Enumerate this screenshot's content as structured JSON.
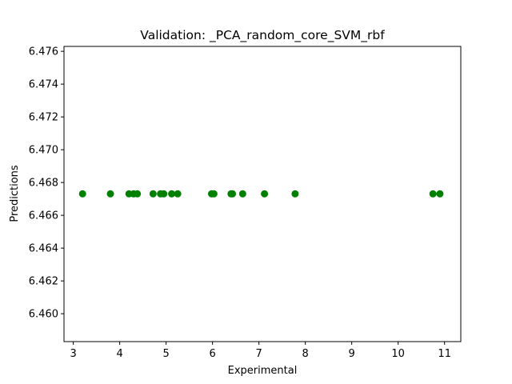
{
  "chart_data": {
    "type": "scatter",
    "title": "Validation: _PCA_random_core_SVM_rbf",
    "xlabel": "Experimental",
    "ylabel": "Predictions",
    "xlim": [
      2.8,
      11.35
    ],
    "ylim": [
      6.4583,
      6.4763
    ],
    "xticks": [
      3,
      4,
      5,
      6,
      7,
      8,
      9,
      10,
      11
    ],
    "yticks": [
      6.46,
      6.462,
      6.464,
      6.466,
      6.468,
      6.47,
      6.472,
      6.474,
      6.476
    ],
    "ytick_labels": [
      "6.460",
      "6.462",
      "6.464",
      "6.466",
      "6.468",
      "6.470",
      "6.472",
      "6.474",
      "6.476"
    ],
    "grid": false,
    "legend": false,
    "marker_color": "#008000",
    "series": [
      {
        "x": [
          3.2,
          3.8,
          4.2,
          4.3,
          4.38,
          4.72,
          4.88,
          4.95,
          5.12,
          5.25,
          5.98,
          6.03,
          6.4,
          6.43,
          6.65,
          7.12,
          7.78,
          10.75,
          10.9
        ],
        "y": [
          6.46731,
          6.46731,
          6.46731,
          6.46731,
          6.46731,
          6.46731,
          6.46731,
          6.46731,
          6.46731,
          6.46731,
          6.46731,
          6.46731,
          6.46731,
          6.46731,
          6.46731,
          6.46731,
          6.46731,
          6.46731,
          6.46731
        ]
      }
    ]
  }
}
